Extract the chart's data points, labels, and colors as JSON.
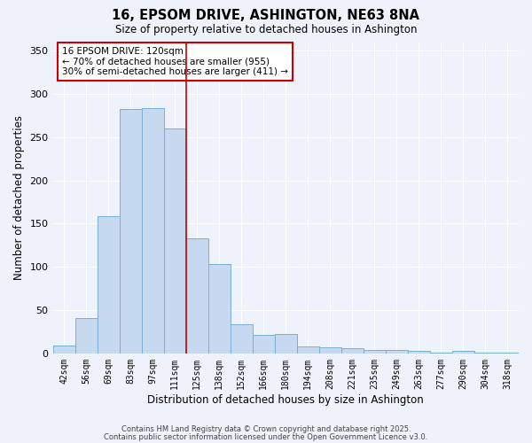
{
  "title": "16, EPSOM DRIVE, ASHINGTON, NE63 8NA",
  "subtitle": "Size of property relative to detached houses in Ashington",
  "xlabel": "Distribution of detached houses by size in Ashington",
  "ylabel": "Number of detached properties",
  "bar_color": "#c6d9f0",
  "bar_edge_color": "#7bafd4",
  "background_color": "#eef2fb",
  "grid_color": "#ffffff",
  "categories": [
    "42sqm",
    "56sqm",
    "69sqm",
    "83sqm",
    "97sqm",
    "111sqm",
    "125sqm",
    "138sqm",
    "152sqm",
    "166sqm",
    "180sqm",
    "194sqm",
    "208sqm",
    "221sqm",
    "235sqm",
    "249sqm",
    "263sqm",
    "277sqm",
    "290sqm",
    "304sqm",
    "318sqm"
  ],
  "values": [
    9,
    41,
    159,
    283,
    284,
    260,
    133,
    103,
    34,
    21,
    22,
    8,
    7,
    6,
    4,
    4,
    3,
    1,
    3,
    1,
    1
  ],
  "ylim": [
    0,
    360
  ],
  "yticks": [
    0,
    50,
    100,
    150,
    200,
    250,
    300,
    350
  ],
  "property_line_x": 5.5,
  "property_line_color": "#cc0000",
  "annotation_text": "16 EPSOM DRIVE: 120sqm\n← 70% of detached houses are smaller (955)\n30% of semi-detached houses are larger (411) →",
  "annotation_box_color": "#ffffff",
  "annotation_box_edge_color": "#cc0000",
  "footnote1": "Contains HM Land Registry data © Crown copyright and database right 2025.",
  "footnote2": "Contains public sector information licensed under the Open Government Licence v3.0."
}
